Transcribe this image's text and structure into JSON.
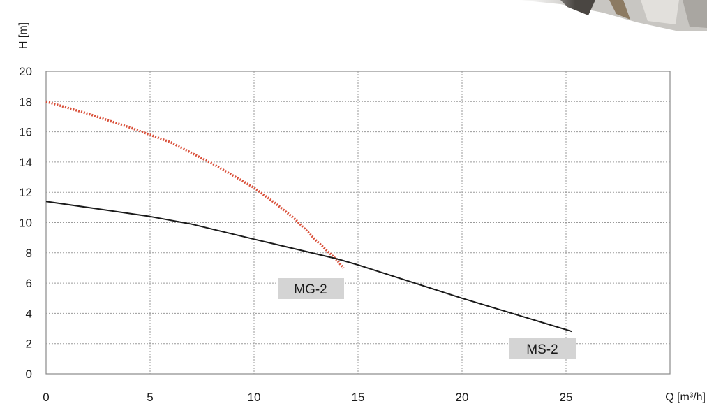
{
  "chart_data": {
    "type": "line",
    "xlabel": "Q [m³/h]",
    "ylabel": "H [m]",
    "xlim": [
      0,
      30
    ],
    "ylim": [
      0,
      20
    ],
    "x_ticks": [
      "0",
      "5",
      "10",
      "15",
      "20",
      "25"
    ],
    "y_ticks": [
      "0",
      "2",
      "4",
      "6",
      "8",
      "10",
      "12",
      "14",
      "16",
      "18",
      "20"
    ],
    "grid": true,
    "series": [
      {
        "name": "MG-2",
        "color": "#d9503a",
        "style": "dotted",
        "x": [
          0,
          2,
          4,
          5,
          6,
          8,
          10,
          11,
          12,
          13,
          14,
          14.3
        ],
        "y": [
          18,
          17.2,
          16.3,
          15.8,
          15.3,
          13.9,
          12.3,
          11.3,
          10.2,
          8.8,
          7.5,
          7.0
        ]
      },
      {
        "name": "MS-2",
        "color": "#1a1a1a",
        "style": "solid",
        "x": [
          0,
          5,
          7,
          10,
          14,
          15,
          20,
          25.3
        ],
        "y": [
          11.4,
          10.4,
          9.9,
          8.9,
          7.6,
          7.2,
          5.0,
          2.8
        ]
      }
    ]
  }
}
